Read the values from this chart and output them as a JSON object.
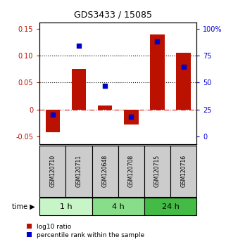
{
  "title": "GDS3433 / 15085",
  "samples": [
    "GSM120710",
    "GSM120711",
    "GSM120648",
    "GSM120708",
    "GSM120715",
    "GSM120716"
  ],
  "log10_ratio": [
    -0.042,
    0.075,
    0.007,
    -0.028,
    0.14,
    0.105
  ],
  "percentile_rank": [
    0.2,
    0.84,
    0.47,
    0.18,
    0.88,
    0.65
  ],
  "time_groups": [
    {
      "label": "1 h",
      "samples": [
        0,
        1
      ],
      "color": "#c8f5c8"
    },
    {
      "label": "4 h",
      "samples": [
        2,
        3
      ],
      "color": "#88dd88"
    },
    {
      "label": "24 h",
      "samples": [
        4,
        5
      ],
      "color": "#44bb44"
    }
  ],
  "bar_color": "#bb1100",
  "dot_color": "#0000cc",
  "left_ylim": [
    -0.065,
    0.162
  ],
  "left_yticks": [
    -0.05,
    0.0,
    0.05,
    0.1,
    0.15
  ],
  "right_yticks_val": [
    -0.05,
    0.0,
    0.05,
    0.1,
    0.15
  ],
  "right_yticks_label": [
    "0",
    "25",
    "50",
    "75",
    "100%"
  ],
  "dotted_lines": [
    0.05,
    0.1
  ],
  "zero_line_color": "#cc2222",
  "background_color": "#ffffff",
  "sample_box_color": "#cccccc",
  "bar_width": 0.55,
  "dot_size": 18,
  "title_fontsize": 9,
  "tick_fontsize": 7,
  "sample_fontsize": 5.5,
  "time_fontsize": 8,
  "legend_fontsize": 6.5
}
